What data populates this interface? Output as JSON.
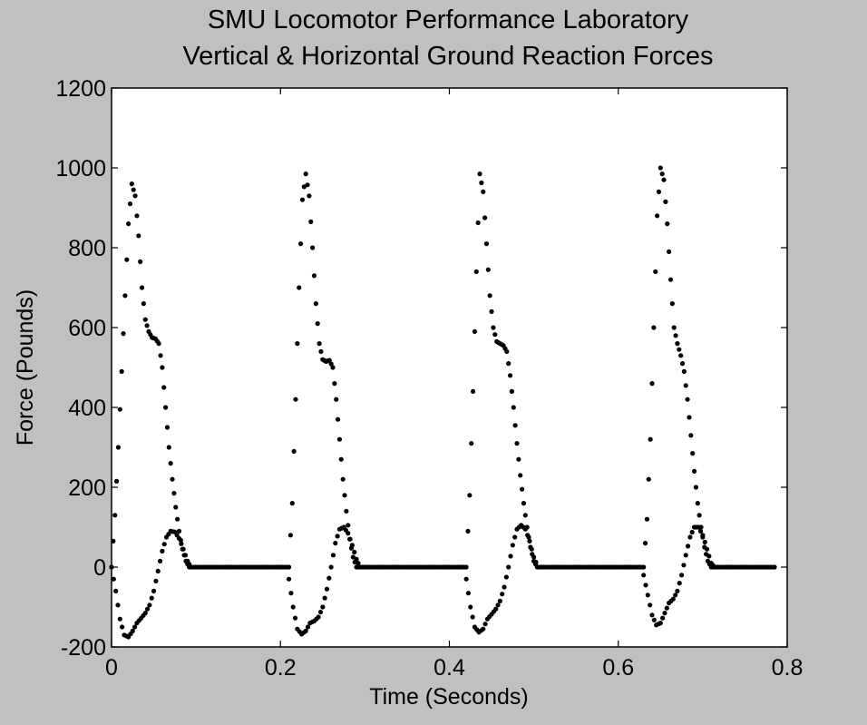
{
  "chart_data": {
    "type": "scatter",
    "title": [
      "SMU Locomotor Performance Laboratory",
      "Vertical & Horizontal Ground Reaction Forces"
    ],
    "xlabel": "Time (Seconds)",
    "ylabel": "Force (Pounds)",
    "xlim": [
      0,
      0.8
    ],
    "ylim": [
      -200,
      1200
    ],
    "x_ticks": [
      "0",
      "0.2",
      "0.4",
      "0.6",
      "0.8"
    ],
    "y_ticks": [
      "-200",
      "0",
      "200",
      "400",
      "600",
      "800",
      "1000",
      "1200"
    ],
    "grid": false,
    "legend": null,
    "marker_color": "#000000",
    "series": [
      {
        "values": [
          {
            "x": 0.0,
            "y": 0
          },
          {
            "x": 0.004,
            "y": 130
          },
          {
            "x": 0.008,
            "y": 300
          },
          {
            "x": 0.012,
            "y": 490
          },
          {
            "x": 0.016,
            "y": 680
          },
          {
            "x": 0.02,
            "y": 860
          },
          {
            "x": 0.024,
            "y": 960
          },
          {
            "x": 0.028,
            "y": 930
          },
          {
            "x": 0.032,
            "y": 830
          },
          {
            "x": 0.036,
            "y": 700
          },
          {
            "x": 0.04,
            "y": 620
          },
          {
            "x": 0.044,
            "y": 590
          },
          {
            "x": 0.048,
            "y": 575
          },
          {
            "x": 0.052,
            "y": 572
          },
          {
            "x": 0.056,
            "y": 560
          },
          {
            "x": 0.06,
            "y": 500
          },
          {
            "x": 0.064,
            "y": 400
          },
          {
            "x": 0.068,
            "y": 300
          },
          {
            "x": 0.072,
            "y": 220
          },
          {
            "x": 0.076,
            "y": 150
          },
          {
            "x": 0.08,
            "y": 90
          },
          {
            "x": 0.084,
            "y": 45
          },
          {
            "x": 0.088,
            "y": 15
          },
          {
            "x": 0.092,
            "y": 0
          },
          {
            "x": 0.21,
            "y": 0
          },
          {
            "x": 0.214,
            "y": 160
          },
          {
            "x": 0.218,
            "y": 420
          },
          {
            "x": 0.222,
            "y": 700
          },
          {
            "x": 0.226,
            "y": 920
          },
          {
            "x": 0.23,
            "y": 985
          },
          {
            "x": 0.234,
            "y": 930
          },
          {
            "x": 0.238,
            "y": 800
          },
          {
            "x": 0.242,
            "y": 660
          },
          {
            "x": 0.246,
            "y": 560
          },
          {
            "x": 0.25,
            "y": 520
          },
          {
            "x": 0.254,
            "y": 515
          },
          {
            "x": 0.258,
            "y": 518
          },
          {
            "x": 0.262,
            "y": 500
          },
          {
            "x": 0.266,
            "y": 420
          },
          {
            "x": 0.27,
            "y": 320
          },
          {
            "x": 0.274,
            "y": 220
          },
          {
            "x": 0.278,
            "y": 140
          },
          {
            "x": 0.282,
            "y": 70
          },
          {
            "x": 0.286,
            "y": 25
          },
          {
            "x": 0.29,
            "y": 0
          },
          {
            "x": 0.42,
            "y": 0
          },
          {
            "x": 0.424,
            "y": 180
          },
          {
            "x": 0.428,
            "y": 440
          },
          {
            "x": 0.432,
            "y": 740
          },
          {
            "x": 0.436,
            "y": 985
          },
          {
            "x": 0.44,
            "y": 940
          },
          {
            "x": 0.444,
            "y": 810
          },
          {
            "x": 0.448,
            "y": 680
          },
          {
            "x": 0.452,
            "y": 600
          },
          {
            "x": 0.456,
            "y": 565
          },
          {
            "x": 0.46,
            "y": 560
          },
          {
            "x": 0.464,
            "y": 555
          },
          {
            "x": 0.468,
            "y": 540
          },
          {
            "x": 0.472,
            "y": 480
          },
          {
            "x": 0.476,
            "y": 400
          },
          {
            "x": 0.48,
            "y": 310
          },
          {
            "x": 0.484,
            "y": 230
          },
          {
            "x": 0.488,
            "y": 160
          },
          {
            "x": 0.492,
            "y": 100
          },
          {
            "x": 0.496,
            "y": 50
          },
          {
            "x": 0.5,
            "y": 15
          },
          {
            "x": 0.504,
            "y": 0
          },
          {
            "x": 0.63,
            "y": 0
          },
          {
            "x": 0.634,
            "y": 120
          },
          {
            "x": 0.638,
            "y": 320
          },
          {
            "x": 0.642,
            "y": 600
          },
          {
            "x": 0.646,
            "y": 880
          },
          {
            "x": 0.65,
            "y": 1000
          },
          {
            "x": 0.654,
            "y": 970
          },
          {
            "x": 0.658,
            "y": 860
          },
          {
            "x": 0.662,
            "y": 720
          },
          {
            "x": 0.666,
            "y": 600
          },
          {
            "x": 0.67,
            "y": 560
          },
          {
            "x": 0.674,
            "y": 530
          },
          {
            "x": 0.678,
            "y": 490
          },
          {
            "x": 0.682,
            "y": 420
          },
          {
            "x": 0.686,
            "y": 330
          },
          {
            "x": 0.69,
            "y": 240
          },
          {
            "x": 0.694,
            "y": 160
          },
          {
            "x": 0.698,
            "y": 100
          },
          {
            "x": 0.702,
            "y": 50
          },
          {
            "x": 0.706,
            "y": 15
          },
          {
            "x": 0.71,
            "y": 0
          },
          {
            "x": 0.74,
            "y": 0
          },
          {
            "x": 0.785,
            "y": 0
          }
        ]
      },
      {
        "values": [
          {
            "x": 0.0,
            "y": 0
          },
          {
            "x": 0.005,
            "y": -60
          },
          {
            "x": 0.01,
            "y": -130
          },
          {
            "x": 0.015,
            "y": -170
          },
          {
            "x": 0.02,
            "y": -175
          },
          {
            "x": 0.025,
            "y": -160
          },
          {
            "x": 0.03,
            "y": -140
          },
          {
            "x": 0.035,
            "y": -128
          },
          {
            "x": 0.04,
            "y": -115
          },
          {
            "x": 0.045,
            "y": -95
          },
          {
            "x": 0.05,
            "y": -60
          },
          {
            "x": 0.055,
            "y": -10
          },
          {
            "x": 0.06,
            "y": 40
          },
          {
            "x": 0.065,
            "y": 75
          },
          {
            "x": 0.07,
            "y": 90
          },
          {
            "x": 0.075,
            "y": 88
          },
          {
            "x": 0.08,
            "y": 72
          },
          {
            "x": 0.085,
            "y": 45
          },
          {
            "x": 0.09,
            "y": 15
          },
          {
            "x": 0.094,
            "y": 0
          },
          {
            "x": 0.21,
            "y": -30
          },
          {
            "x": 0.215,
            "y": -100
          },
          {
            "x": 0.22,
            "y": -155
          },
          {
            "x": 0.225,
            "y": -168
          },
          {
            "x": 0.23,
            "y": -160
          },
          {
            "x": 0.235,
            "y": -140
          },
          {
            "x": 0.24,
            "y": -135
          },
          {
            "x": 0.245,
            "y": -125
          },
          {
            "x": 0.25,
            "y": -100
          },
          {
            "x": 0.255,
            "y": -55
          },
          {
            "x": 0.26,
            "y": 0
          },
          {
            "x": 0.265,
            "y": 60
          },
          {
            "x": 0.27,
            "y": 95
          },
          {
            "x": 0.275,
            "y": 100
          },
          {
            "x": 0.28,
            "y": 85
          },
          {
            "x": 0.285,
            "y": 55
          },
          {
            "x": 0.29,
            "y": 20
          },
          {
            "x": 0.294,
            "y": 0
          },
          {
            "x": 0.42,
            "y": -30
          },
          {
            "x": 0.425,
            "y": -100
          },
          {
            "x": 0.43,
            "y": -150
          },
          {
            "x": 0.435,
            "y": -163
          },
          {
            "x": 0.44,
            "y": -155
          },
          {
            "x": 0.445,
            "y": -130
          },
          {
            "x": 0.45,
            "y": -118
          },
          {
            "x": 0.455,
            "y": -105
          },
          {
            "x": 0.46,
            "y": -85
          },
          {
            "x": 0.465,
            "y": -50
          },
          {
            "x": 0.47,
            "y": 0
          },
          {
            "x": 0.475,
            "y": 55
          },
          {
            "x": 0.48,
            "y": 95
          },
          {
            "x": 0.485,
            "y": 105
          },
          {
            "x": 0.49,
            "y": 95
          },
          {
            "x": 0.495,
            "y": 65
          },
          {
            "x": 0.5,
            "y": 25
          },
          {
            "x": 0.505,
            "y": 0
          },
          {
            "x": 0.63,
            "y": -20
          },
          {
            "x": 0.635,
            "y": -70
          },
          {
            "x": 0.64,
            "y": -120
          },
          {
            "x": 0.645,
            "y": -145
          },
          {
            "x": 0.65,
            "y": -140
          },
          {
            "x": 0.655,
            "y": -115
          },
          {
            "x": 0.66,
            "y": -90
          },
          {
            "x": 0.665,
            "y": -80
          },
          {
            "x": 0.67,
            "y": -60
          },
          {
            "x": 0.675,
            "y": -20
          },
          {
            "x": 0.68,
            "y": 30
          },
          {
            "x": 0.685,
            "y": 75
          },
          {
            "x": 0.69,
            "y": 100
          },
          {
            "x": 0.695,
            "y": 100
          },
          {
            "x": 0.7,
            "y": 80
          },
          {
            "x": 0.705,
            "y": 45
          },
          {
            "x": 0.71,
            "y": 10
          },
          {
            "x": 0.714,
            "y": 0
          }
        ]
      }
    ]
  }
}
